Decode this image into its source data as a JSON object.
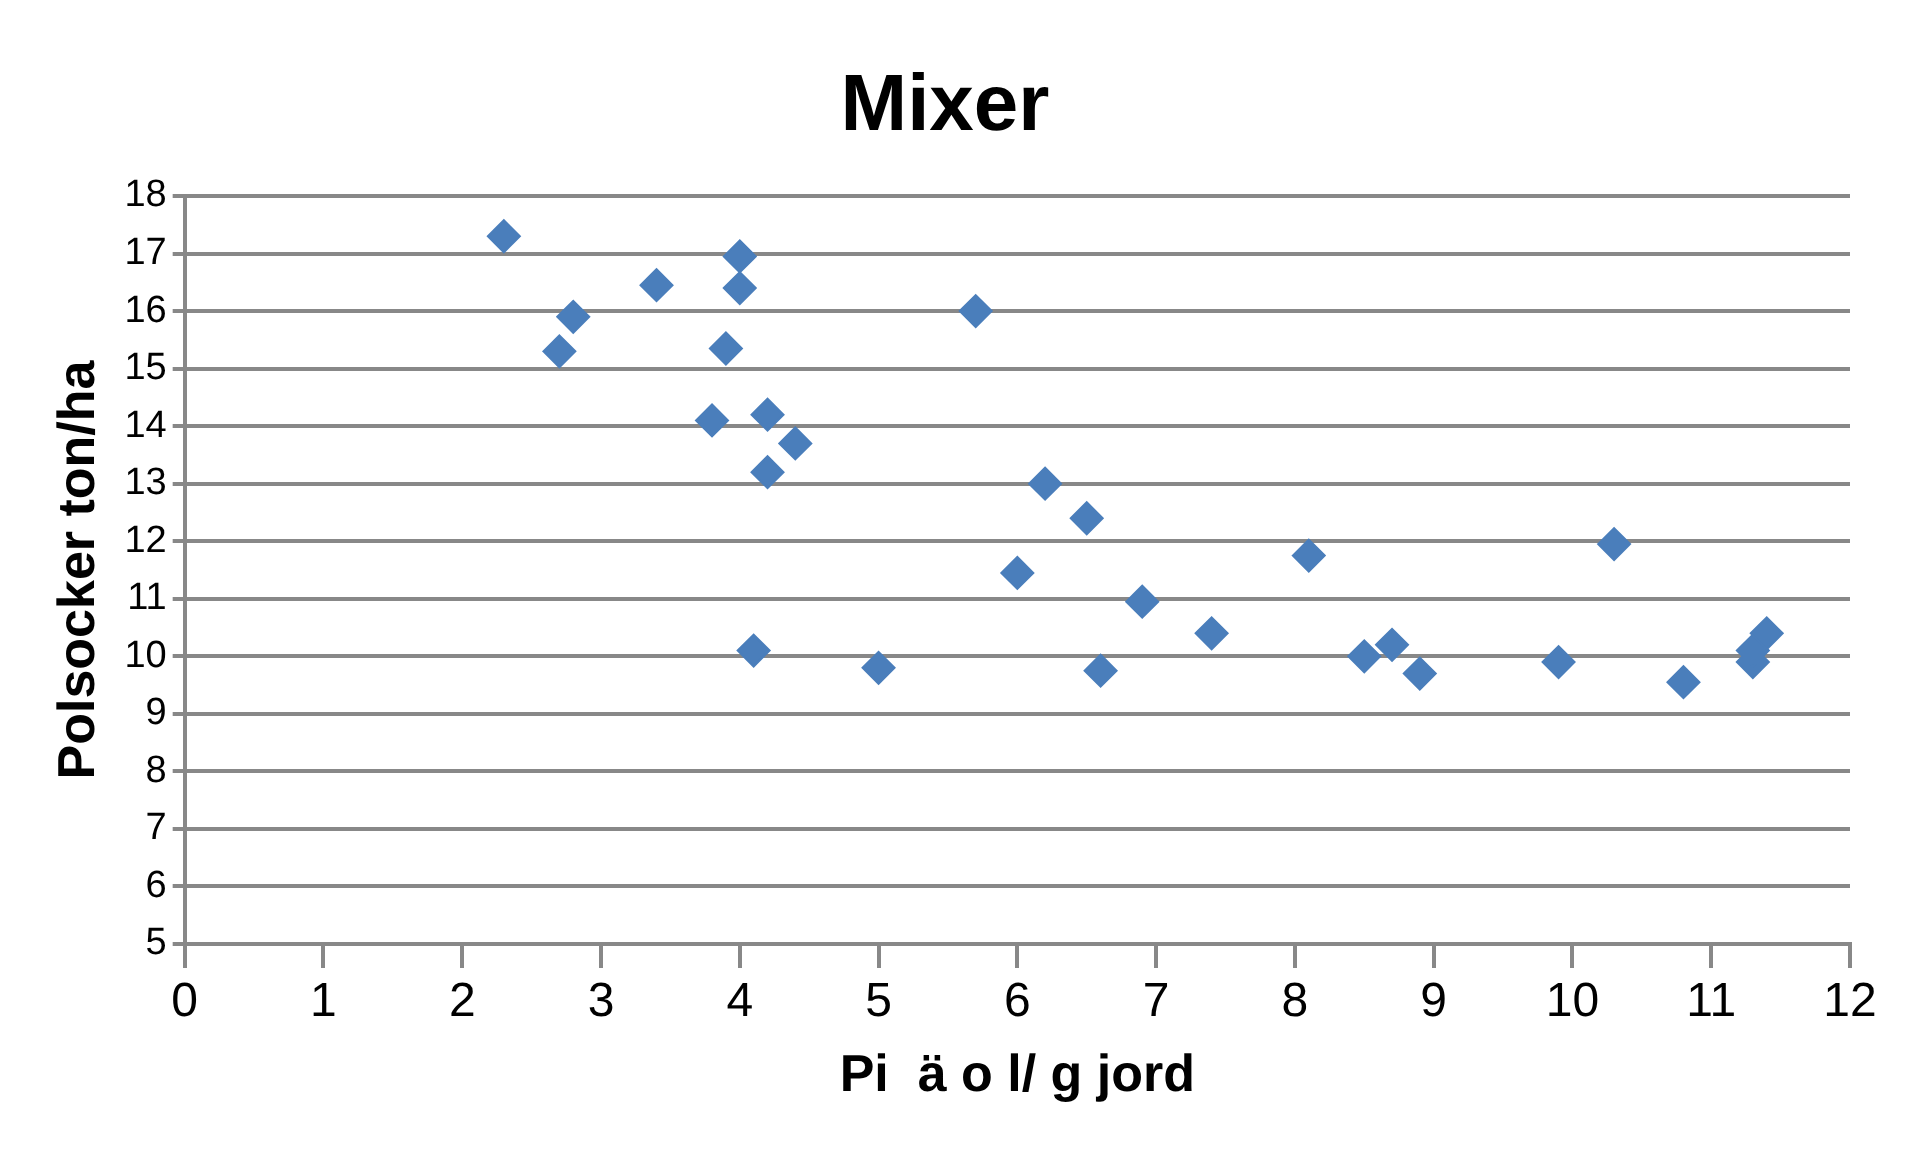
{
  "chart_data": {
    "type": "scatter",
    "title": "Mixer",
    "xlabel": "Pi  ä o l/ g jord",
    "ylabel": "Polsocker ton/ha",
    "series": [
      {
        "color": "#4a7ebb",
        "x": [
          2.3,
          2.7,
          2.8,
          3.4,
          3.8,
          3.9,
          4.0,
          4.0,
          4.1,
          4.2,
          4.2,
          4.4,
          5.0,
          5.7,
          6.0,
          6.2,
          6.5,
          6.6,
          6.9,
          7.4,
          8.1,
          8.5,
          8.7,
          8.9,
          9.9,
          10.3,
          10.8,
          11.3,
          11.3,
          11.4
        ],
        "values": [
          17.3,
          15.3,
          15.9,
          16.45,
          14.1,
          15.35,
          16.95,
          16.4,
          10.1,
          14.2,
          13.2,
          13.7,
          9.8,
          16.0,
          11.45,
          13.0,
          12.4,
          9.75,
          10.95,
          10.4,
          11.75,
          10.0,
          10.2,
          9.7,
          9.9,
          11.95,
          9.55,
          9.9,
          10.1,
          10.4
        ]
      }
    ],
    "xlim": [
      0,
      12
    ],
    "xticks": [
      0,
      1,
      2,
      3,
      4,
      5,
      6,
      7,
      8,
      9,
      10,
      11,
      12
    ],
    "ylim": [
      5,
      18
    ],
    "yticks": [
      5,
      6,
      7,
      8,
      9,
      10,
      11,
      12,
      13,
      14,
      15,
      16,
      17,
      18
    ],
    "grid": "y",
    "legend": false,
    "marker": "diamond"
  }
}
